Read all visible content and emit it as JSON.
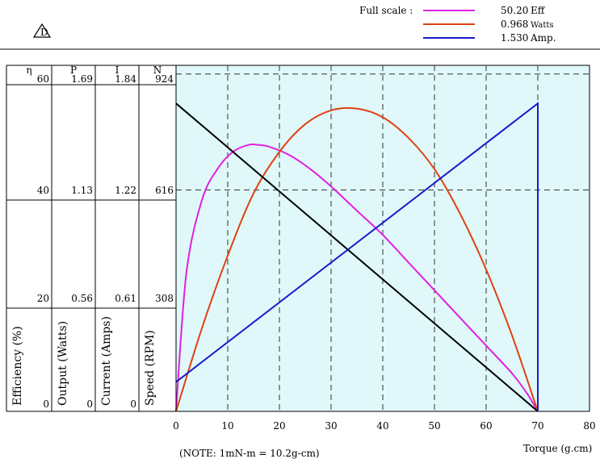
{
  "header": {
    "logo_text": "D",
    "full_scale_label": "Full scale :",
    "legend": [
      {
        "value": "50.20",
        "unit": "Eff",
        "color": "#e020e0"
      },
      {
        "value": "0.968",
        "unit": "Watts",
        "color": "#e04010"
      },
      {
        "value": "1.530",
        "unit": "Amp.",
        "color": "#1a1acc"
      }
    ]
  },
  "table": {
    "columns": [
      {
        "symbol": "η",
        "axis_label": "Efficiency (%)"
      },
      {
        "symbol": "P",
        "axis_label": "Output (Watts)"
      },
      {
        "symbol": "I",
        "axis_label": "Current (Amps)"
      },
      {
        "symbol": "N",
        "axis_label": "Speed (RPM)"
      }
    ],
    "rows": [
      [
        "60",
        "1.69",
        "1.84",
        "924"
      ],
      [
        "40",
        "1.13",
        "1.22",
        "616"
      ],
      [
        "20",
        "0.56",
        "0.61",
        "308"
      ],
      [
        "0",
        "0",
        "0",
        ""
      ]
    ]
  },
  "note": "(NOTE: 1mN-m = 10.2g-cm)",
  "chart_data": {
    "type": "line",
    "xlabel": "Torque (g.cm)",
    "xlim": [
      0,
      80
    ],
    "x_ticks": [
      "0",
      "10",
      "20",
      "30",
      "40",
      "50",
      "60",
      "70",
      "80"
    ],
    "ylim": [
      0,
      1
    ],
    "grid": true,
    "background_color": "#e0f8fa",
    "series": [
      {
        "name": "Eff",
        "color": "#e020e0",
        "x": [
          0,
          2,
          5,
          8,
          11,
          14,
          16,
          18,
          22,
          26,
          30,
          35,
          40,
          45,
          50,
          55,
          60,
          65,
          68,
          70
        ],
        "y": [
          0,
          0.4,
          0.61,
          0.7,
          0.75,
          0.77,
          0.77,
          0.765,
          0.74,
          0.7,
          0.65,
          0.58,
          0.51,
          0.43,
          0.35,
          0.27,
          0.19,
          0.11,
          0.05,
          0
        ]
      },
      {
        "name": "Watts",
        "color": "#e04010",
        "x": [
          0,
          5,
          10,
          15,
          20,
          25,
          30,
          35,
          40,
          45,
          50,
          55,
          60,
          65,
          70
        ],
        "y": [
          0,
          0.24,
          0.45,
          0.63,
          0.75,
          0.83,
          0.87,
          0.875,
          0.85,
          0.79,
          0.7,
          0.57,
          0.41,
          0.22,
          0
        ]
      },
      {
        "name": "Speed",
        "color": "#000000",
        "x": [
          0,
          70
        ],
        "y": [
          0.89,
          0
        ]
      },
      {
        "name": "Amp.",
        "color": "#1a1acc",
        "x": [
          0,
          70,
          70
        ],
        "y": [
          0.085,
          0.89,
          0
        ]
      }
    ],
    "dashed_reference_y": [
      0.64,
      0.975
    ]
  }
}
